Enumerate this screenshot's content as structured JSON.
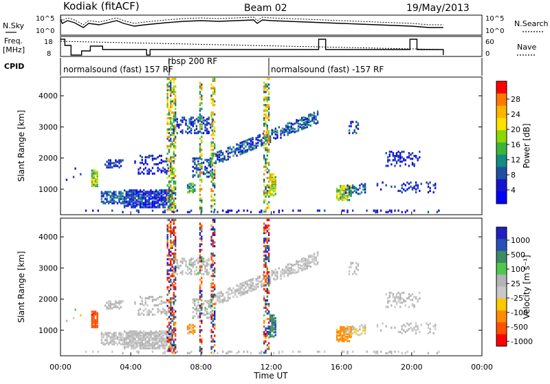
{
  "header": {
    "station": "Kodiak (fitACF)",
    "beam": "Beam 02",
    "date": "19/May/2013"
  },
  "top_panels": {
    "nsky_label": "N.Sky",
    "nsearch_label": "N.Search",
    "nsky_ticks": [
      "10^5",
      "10^0"
    ],
    "nsearch_ticks": [
      "10^5",
      "10^0"
    ],
    "freq_label": [
      "Freq.",
      "[MHz]"
    ],
    "freq_ticks": [
      "18",
      "8"
    ],
    "nave_label": "Nave",
    "nave_ticks": [
      "60",
      "0"
    ],
    "cpid_label": "CPID",
    "cpid_segments": [
      {
        "text": "normalsound (fast) 157 RF",
        "start": 0.0
      },
      {
        "text": "rbsp 200 RF",
        "start": 6.4
      },
      {
        "text": "normalsound (fast) -157 RF",
        "start": 12.0
      }
    ]
  },
  "power_colorbar": {
    "label": "Power [dB]",
    "ticks": [
      "28",
      "24",
      "20",
      "16",
      "12",
      "8",
      "4"
    ],
    "colors": [
      "#ff0000",
      "#ff7800",
      "#ffb400",
      "#ffe000",
      "#8cd800",
      "#3cb43c",
      "#148c82",
      "#1e50a0",
      "#1414d2",
      "#0000ff"
    ]
  },
  "velocity_colorbar": {
    "label": "Velocity [m s⁻¹]",
    "ticks": [
      "1000",
      "500",
      "100",
      "25",
      "-25",
      "-100",
      "-500",
      "-1000"
    ],
    "colors": [
      "#2020c0",
      "#2850b4",
      "#3c8c64",
      "#50c850",
      "#b4b4b4",
      "#c8c8c8",
      "#ffc800",
      "#ff8c00",
      "#ff5000",
      "#ff0000"
    ]
  },
  "axes": {
    "ylabel": "Slant Range [km]",
    "yticks": [
      "4000",
      "3000",
      "2000",
      "1000"
    ],
    "xlabel": "Time UT",
    "xticks": [
      "00:00",
      "04:00",
      "08:00",
      "12:00",
      "16:00",
      "20:00",
      "00:00"
    ]
  },
  "chart_data": [
    {
      "type": "heatmap",
      "title": "",
      "xlabel": "",
      "ylabel": "Slant Range [km]",
      "xlim": [
        0,
        24
      ],
      "ylim": [
        180,
        4600
      ],
      "colorbar_label": "Power [dB]",
      "colorbar_range": [
        0,
        30
      ],
      "features": [
        {
          "name": "near-range band",
          "t": [
            2.3,
            6.5
          ],
          "range_km": [
            450,
            1000
          ],
          "power_db": 8
        },
        {
          "name": "patch 02h",
          "t": [
            1.8,
            2.2
          ],
          "range_km": [
            1100,
            1600
          ],
          "power_db": 22
        },
        {
          "name": "rising streak",
          "t": [
            9.2,
            14.5
          ],
          "range_km": [
            1900,
            3500
          ],
          "power_db": 10
        },
        {
          "name": "patch 12h",
          "t": [
            11.9,
            12.2
          ],
          "range_km": [
            800,
            1500
          ],
          "power_db": 22
        },
        {
          "name": "patch 16h",
          "t": [
            15.8,
            16.5
          ],
          "range_km": [
            650,
            1100
          ],
          "power_db": 20
        }
      ]
    },
    {
      "type": "heatmap",
      "title": "",
      "xlabel": "Time UT",
      "ylabel": "Slant Range [km]",
      "xlim": [
        0,
        24
      ],
      "ylim": [
        180,
        4600
      ],
      "colorbar_label": "Velocity [m s⁻¹]",
      "colorbar_range": [
        -1000,
        1000
      ],
      "features": [
        {
          "name": "patch 02h",
          "t": [
            1.8,
            2.2
          ],
          "range_km": [
            1100,
            1600
          ],
          "velocity": -600
        },
        {
          "name": "near-range band",
          "t": [
            2.3,
            6.5
          ],
          "range_km": [
            450,
            1000
          ],
          "velocity": 0
        },
        {
          "name": "rising streak",
          "t": [
            9.2,
            14.5
          ],
          "range_km": [
            1900,
            3500
          ],
          "velocity": 0
        },
        {
          "name": "patch 12h",
          "t": [
            11.9,
            12.2
          ],
          "range_km": [
            800,
            1500
          ],
          "velocity": 150
        },
        {
          "name": "patch 16h",
          "t": [
            15.8,
            16.5
          ],
          "range_km": [
            650,
            1100
          ],
          "velocity": -150
        }
      ]
    }
  ]
}
